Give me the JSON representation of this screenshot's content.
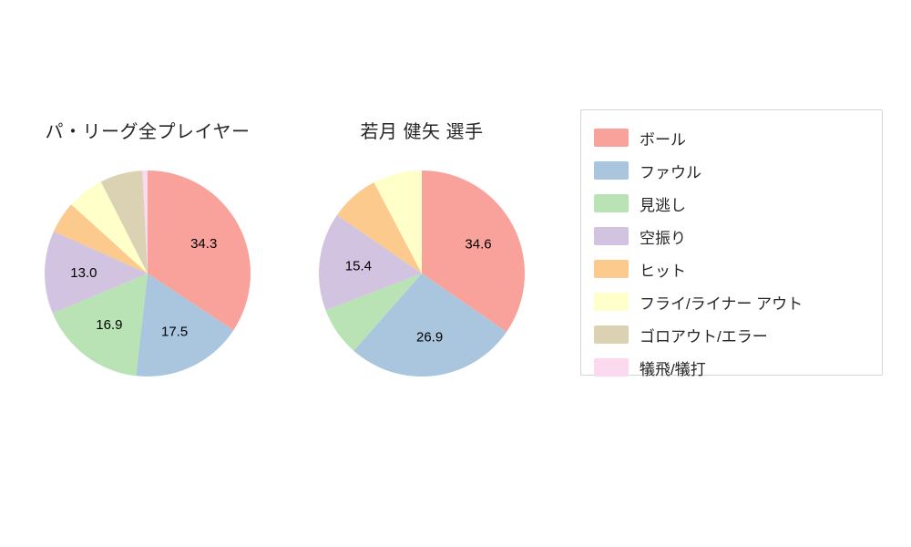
{
  "palette": [
    "#F9A29B",
    "#A9C6DE",
    "#B9E3B4",
    "#D2C3E0",
    "#FBCA8C",
    "#FFFFC9",
    "#DBD2B4",
    "#FBD9EE"
  ],
  "legend": {
    "items": [
      {
        "label": "ボール",
        "color": "#F9A29B"
      },
      {
        "label": "ファウル",
        "color": "#A9C6DE"
      },
      {
        "label": "見逃し",
        "color": "#B9E3B4"
      },
      {
        "label": "空振り",
        "color": "#D2C3E0"
      },
      {
        "label": "ヒット",
        "color": "#FBCA8C"
      },
      {
        "label": "フライ/ライナー アウト",
        "color": "#FFFFC9"
      },
      {
        "label": "ゴロアウト/エラー",
        "color": "#DBD2B4"
      },
      {
        "label": "犠飛/犠打",
        "color": "#FBD9EE"
      }
    ]
  },
  "chart_data": [
    {
      "type": "pie",
      "title": "パ・リーグ全プレイヤー",
      "labels": [
        "ボール",
        "ファウル",
        "見逃し",
        "空振り",
        "ヒット",
        "フライ/ライナー アウト",
        "ゴロアウト/エラー",
        "犠飛/犠打"
      ],
      "values": [
        34.3,
        17.5,
        16.9,
        13.0,
        5.0,
        5.8,
        6.7,
        0.8
      ],
      "labeled_values": [
        34.3,
        17.5,
        16.9,
        13.0
      ],
      "label_min_percent": 10,
      "start_angle_deg": 0,
      "direction": "clockwise",
      "legend_position": "right"
    },
    {
      "type": "pie",
      "title": "若月 健矢  選手",
      "labels": [
        "ボール",
        "ファウル",
        "見逃し",
        "空振り",
        "ヒット",
        "フライ/ライナー アウト",
        "ゴロアウト/エラー",
        "犠飛/犠打"
      ],
      "values": [
        34.6,
        26.9,
        7.7,
        15.4,
        7.7,
        7.7,
        0,
        0
      ],
      "labeled_values": [
        34.6,
        26.9,
        15.4
      ],
      "label_min_percent": 10,
      "start_angle_deg": 0,
      "direction": "clockwise",
      "legend_position": "right"
    }
  ]
}
